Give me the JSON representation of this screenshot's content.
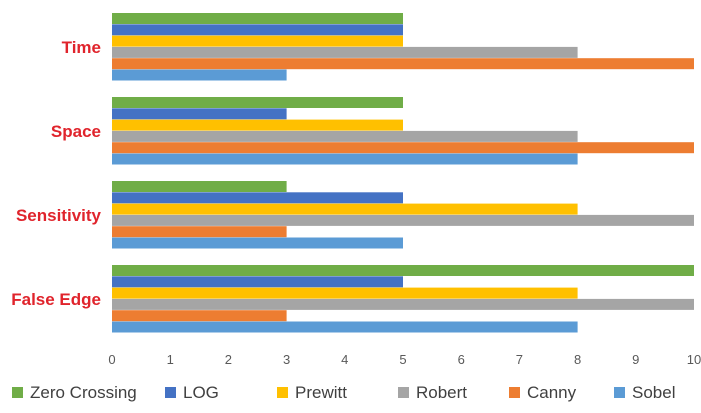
{
  "chart_data": {
    "type": "bar",
    "orientation": "horizontal",
    "title": "",
    "xlabel": "",
    "ylabel": "",
    "categories": [
      "Time",
      "Space",
      "Sensitivity",
      "False Edge"
    ],
    "xlim": [
      0,
      10
    ],
    "x_ticks": [
      "0",
      "1",
      "2",
      "3",
      "4",
      "5",
      "6",
      "7",
      "8",
      "9",
      "10"
    ],
    "grid": false,
    "legend_position": "bottom",
    "category_label_color": "#e0242c",
    "series": [
      {
        "name": "Zero Crossing",
        "color": "#70ad47",
        "values": [
          5,
          5,
          3,
          10
        ]
      },
      {
        "name": "LOG",
        "color": "#4472c4",
        "values": [
          5,
          3,
          5,
          5
        ]
      },
      {
        "name": "Prewitt",
        "color": "#ffc000",
        "values": [
          5,
          5,
          8,
          8
        ]
      },
      {
        "name": "Robert",
        "color": "#a5a5a5",
        "values": [
          8,
          8,
          10,
          10
        ]
      },
      {
        "name": "Canny",
        "color": "#ed7d31",
        "values": [
          10,
          10,
          3,
          3
        ]
      },
      {
        "name": "Sobel",
        "color": "#5b9bd5",
        "values": [
          3,
          8,
          5,
          8
        ]
      }
    ]
  }
}
